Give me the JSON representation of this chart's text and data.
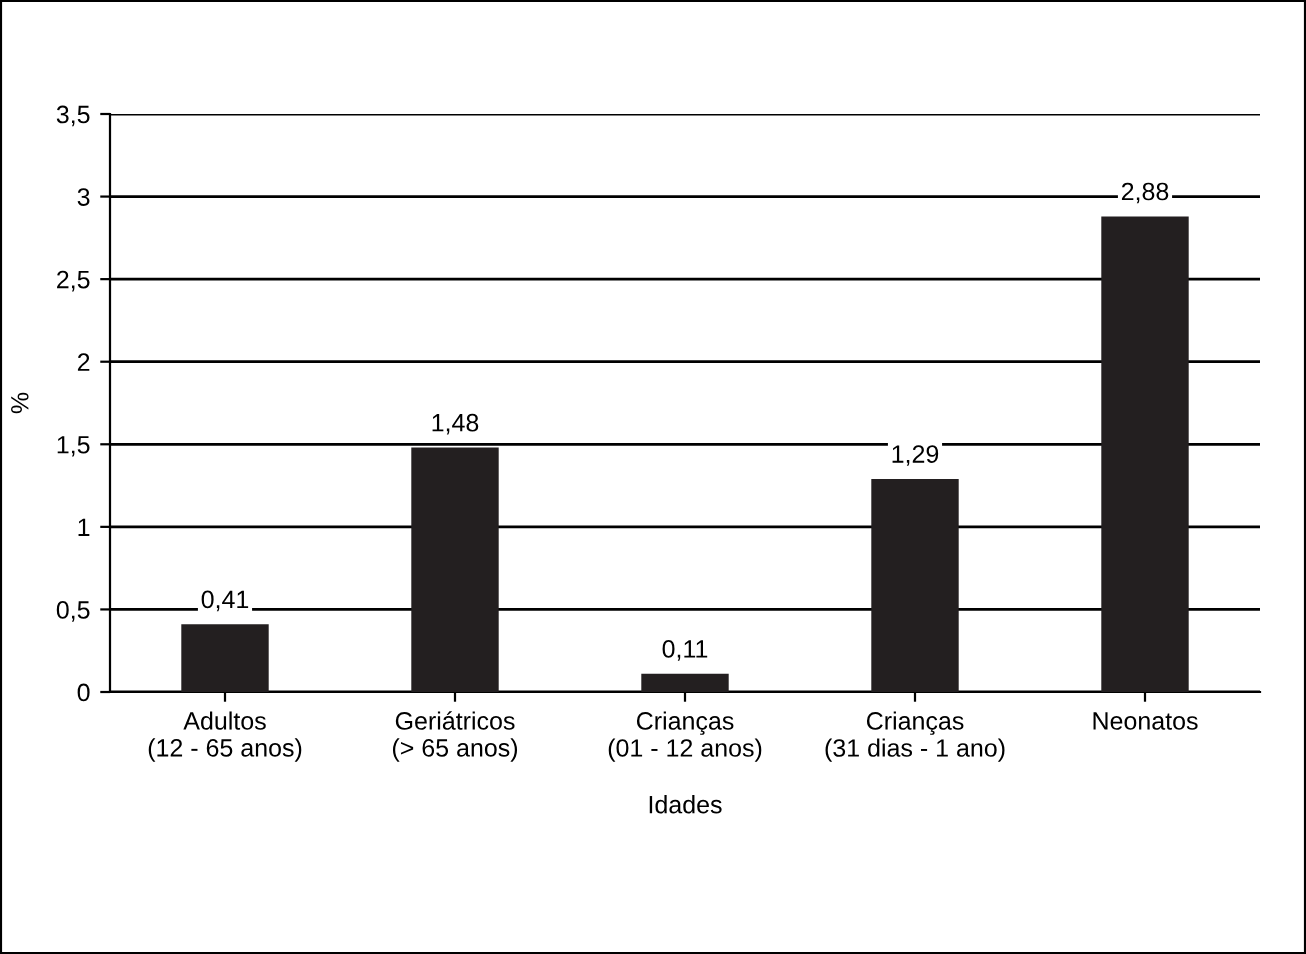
{
  "chart_data": {
    "type": "bar",
    "xlabel": "Idades",
    "ylabel": "%",
    "categories": [
      "Adultos\n(12 - 65 anos)",
      "Geriátricos\n(> 65 anos)",
      "Crianças\n(01 - 12 anos)",
      "Crianças\n(31 dias - 1 ano)",
      "Neonatos"
    ],
    "values": [
      0.41,
      1.48,
      0.11,
      1.29,
      2.88
    ],
    "value_labels": [
      "0,41",
      "1,48",
      "0,11",
      "1,29",
      "2,88"
    ],
    "color": "#231f20",
    "ylim": [
      0,
      3.5
    ],
    "yticks": [
      0,
      {
        "value": 0.5,
        "label": "0,5"
      },
      1,
      {
        "value": 1.5,
        "label": "1,5"
      },
      2,
      {
        "value": 2.5,
        "label": "2,5"
      },
      3,
      {
        "value": 3.5,
        "label": "3,5"
      }
    ],
    "grid": "y",
    "legend": false
  }
}
